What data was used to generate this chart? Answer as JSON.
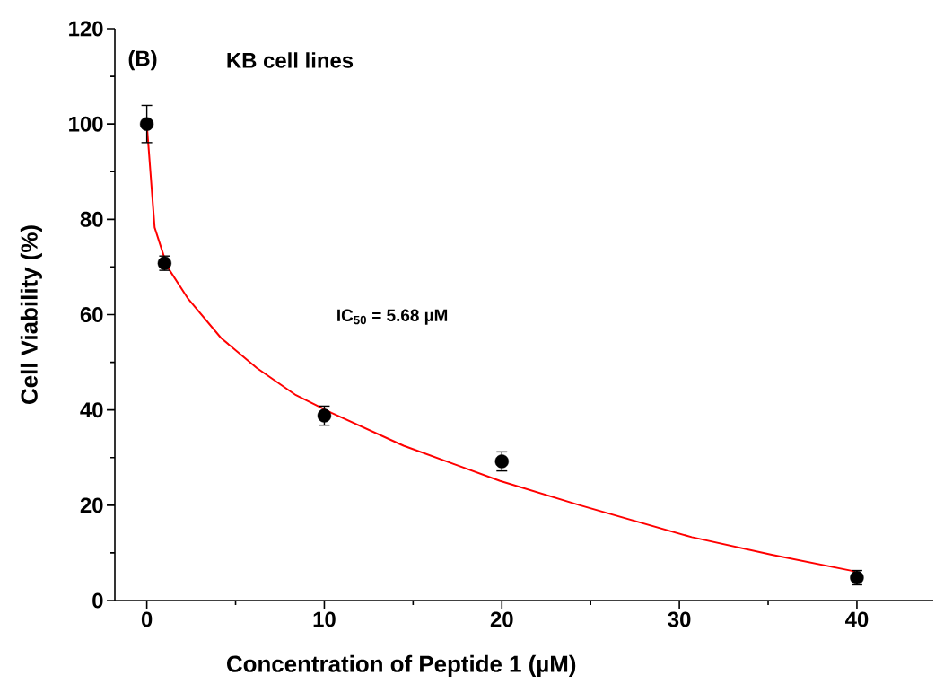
{
  "chart_data": {
    "type": "scatter",
    "xlabel": "Concentration of Peptide 1 (µM)",
    "ylabel": "Cell Viability (%)",
    "annotations": [
      "(B)",
      "KB cell lines",
      "IC$_{50}$ = 5.68 µM"
    ],
    "xlim": [
      -1.8,
      44.3
    ],
    "ylim": [
      0,
      120
    ],
    "xticks": [
      0,
      {
        "value": 5,
        "label": null
      },
      10,
      {
        "value": 15,
        "label": null
      },
      20,
      {
        "value": 25,
        "label": null
      },
      30,
      {
        "value": 35,
        "label": null
      },
      40
    ],
    "yticks": [
      0,
      {
        "value": 10,
        "label": null
      },
      20,
      {
        "value": 30,
        "label": null
      },
      40,
      {
        "value": 50,
        "label": null
      },
      60,
      {
        "value": 70,
        "label": null
      },
      80,
      {
        "value": 90,
        "label": null
      },
      100,
      {
        "value": 110,
        "label": null
      },
      120
    ],
    "marker": "circle",
    "series": [
      {
        "color": "#000000",
        "x": [
          0,
          1,
          10,
          20,
          40
        ],
        "values": [
          100,
          70.8,
          38.8,
          29.2,
          4.8
        ],
        "errors": [
          3.9,
          1.5,
          2,
          2,
          1.5
        ]
      },
      {
        "type": "line",
        "color": "#ff0000",
        "marker": "none",
        "line_style": "solid",
        "x": [
          0,
          0.44,
          1.15,
          2.33,
          4.18,
          6.2,
          8.4,
          10.4,
          14.46,
          19.9,
          24.4,
          30.7,
          35.2,
          39.9
        ],
        "values": [
          100,
          78.3,
          70.1,
          63.3,
          55.1,
          48.8,
          43.1,
          39.4,
          32.5,
          25.1,
          20.0,
          13.3,
          9.6,
          6.1
        ]
      }
    ]
  }
}
